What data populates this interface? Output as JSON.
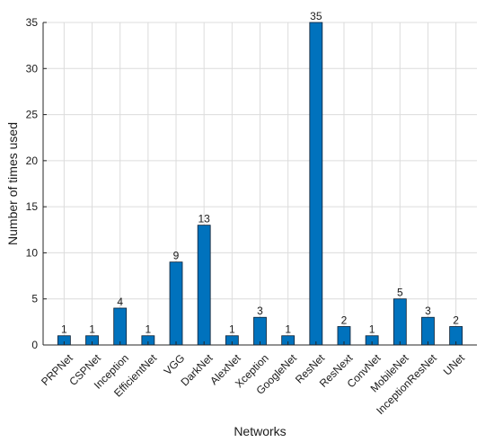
{
  "chart_data": {
    "type": "bar",
    "categories": [
      "PRPNet",
      "CSPNet",
      "Inception",
      "EfficientNet",
      "VGG",
      "DarkNet",
      "AlexNet",
      "Xception",
      "GoogleNet",
      "ResNet",
      "ResNext",
      "ConvNet",
      "MobileNet",
      "InceptionResNet",
      "UNet"
    ],
    "values": [
      1,
      1,
      4,
      1,
      9,
      13,
      1,
      3,
      1,
      35,
      2,
      1,
      5,
      3,
      2
    ],
    "title": "",
    "xlabel": "Networks",
    "ylabel": "Number of times used",
    "ylim": [
      0,
      35
    ],
    "yticks": [
      0,
      5,
      10,
      15,
      20,
      25,
      30,
      35
    ],
    "grid": true,
    "bar_color": "#0072BD",
    "data_labels": true
  }
}
